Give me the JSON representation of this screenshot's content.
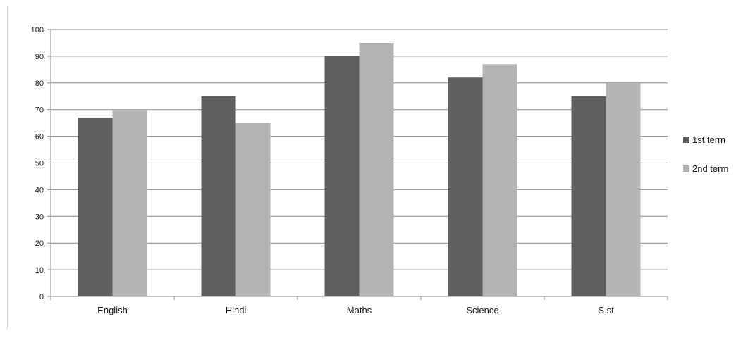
{
  "chart_data": {
    "type": "bar",
    "title": "",
    "xlabel": "",
    "ylabel": "",
    "categories": [
      "English",
      "Hindi",
      "Maths",
      "Science",
      "S.st"
    ],
    "series": [
      {
        "name": "1st term",
        "values": [
          67,
          75,
          90,
          82,
          75
        ],
        "color": "#5f5f5f"
      },
      {
        "name": "2nd term",
        "values": [
          70,
          65,
          95,
          87,
          80
        ],
        "color": "#b3b3b3"
      }
    ],
    "ylim": [
      0,
      100
    ],
    "yticks": [
      0,
      10,
      20,
      30,
      40,
      50,
      60,
      70,
      80,
      90,
      100
    ],
    "grid": true,
    "legend_position": "right"
  }
}
